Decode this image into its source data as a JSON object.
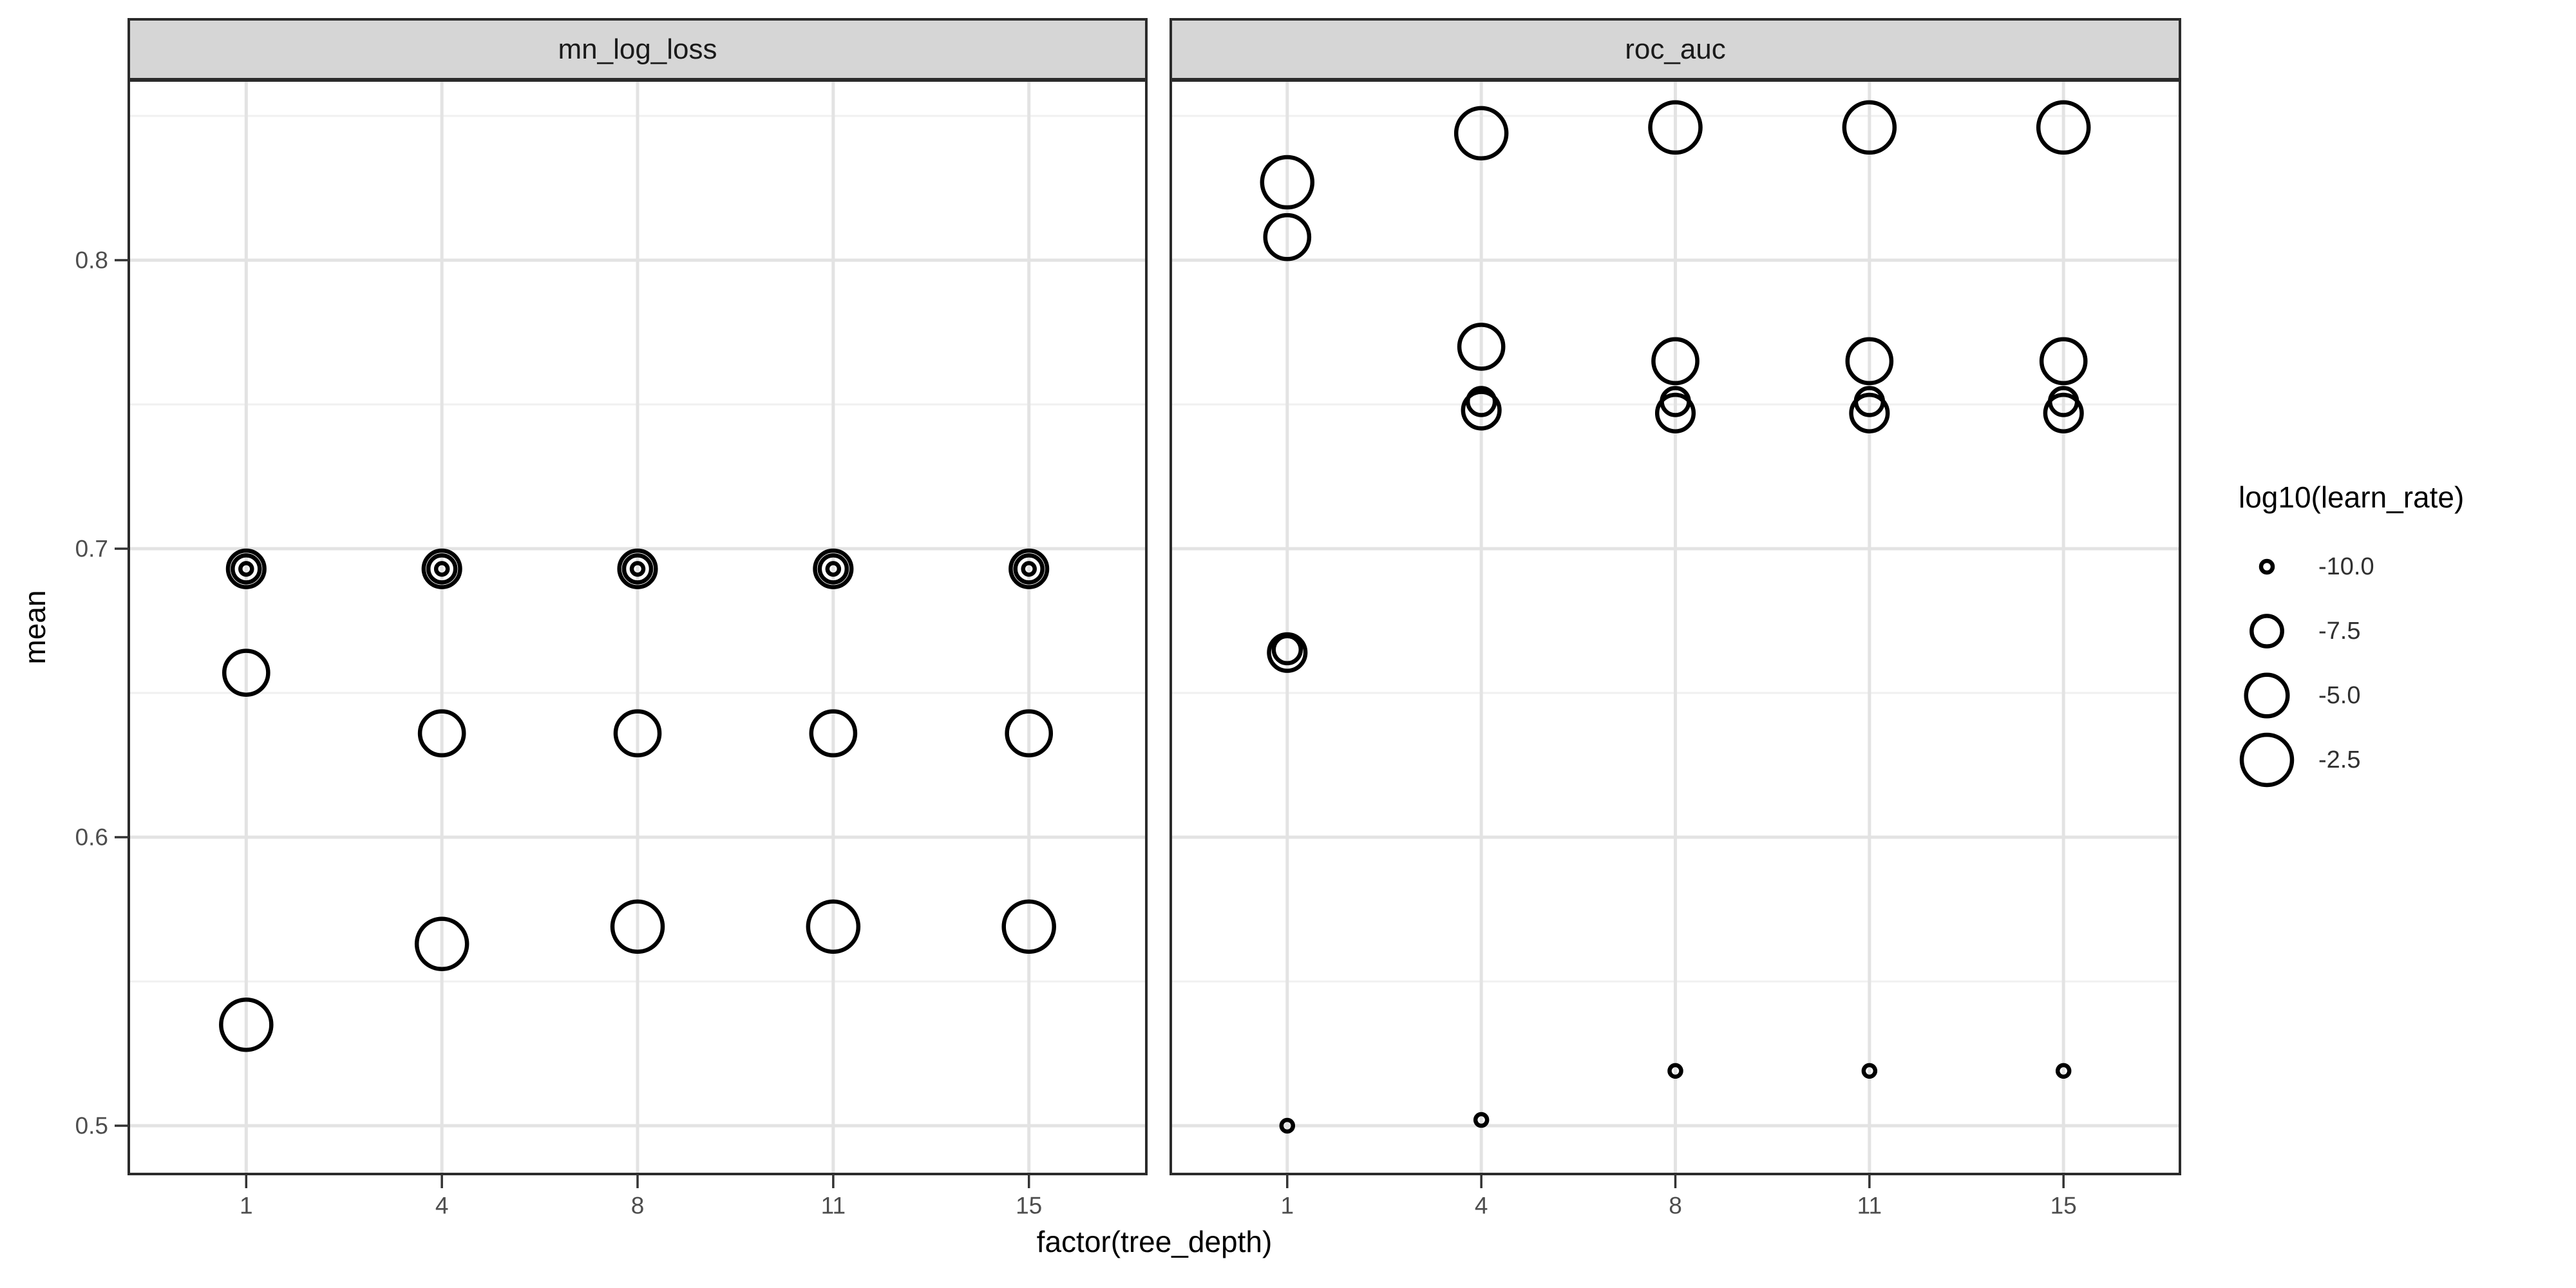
{
  "colors": {
    "background": "#ffffff",
    "strip_fill": "#d6d6d6",
    "strip_border": "#2b2b2b",
    "panel_border": "#2b2b2b",
    "grid_major": "#e3e3e3",
    "grid_minor": "#f0f0f0",
    "point_stroke": "#000000",
    "axis_tick_text": "#4d4d4d",
    "title_text": "#000000",
    "tick_mark": "#333333"
  },
  "chart_data": {
    "type": "scatter",
    "title": "",
    "xlabel": "factor(tree_depth)",
    "ylabel": "mean",
    "facet_labels": [
      "mn_log_loss",
      "roc_auc"
    ],
    "categories": [
      "1",
      "4",
      "8",
      "11",
      "15"
    ],
    "x_axis": {
      "tick_labels": [
        "1",
        "4",
        "8",
        "11",
        "15"
      ]
    },
    "y_axis": {
      "tick_labels": [
        "0.8",
        "0.7",
        "0.6",
        "0.5"
      ],
      "tick_values": [
        0.8,
        0.7,
        0.6,
        0.5
      ],
      "minor_values": [
        0.85,
        0.75,
        0.65,
        0.55
      ],
      "range_shown": [
        0.483,
        0.862
      ],
      "grid": true
    },
    "legend": {
      "title": "log10(learn_rate)",
      "position": "right",
      "entries": [
        {
          "label": "-10.0",
          "value": -10.0
        },
        {
          "label": "-7.5",
          "value": -7.5
        },
        {
          "label": "-5.0",
          "value": -5.0
        },
        {
          "label": "-2.5",
          "value": -2.5
        }
      ]
    },
    "size_scale": {
      "aesthetic": "size",
      "domain": [
        -10.0,
        -2.5
      ],
      "radius_px": [
        9,
        39
      ]
    },
    "facets": [
      {
        "label": "mn_log_loss",
        "points": [
          {
            "tree_depth": "1",
            "log10_learn_rate": -10.0,
            "mean": 0.693
          },
          {
            "tree_depth": "1",
            "log10_learn_rate": -8.125,
            "mean": 0.693
          },
          {
            "tree_depth": "1",
            "log10_learn_rate": -6.25,
            "mean": 0.693
          },
          {
            "tree_depth": "1",
            "log10_learn_rate": -4.375,
            "mean": 0.657
          },
          {
            "tree_depth": "1",
            "log10_learn_rate": -2.5,
            "mean": 0.535
          },
          {
            "tree_depth": "4",
            "log10_learn_rate": -10.0,
            "mean": 0.693
          },
          {
            "tree_depth": "4",
            "log10_learn_rate": -8.125,
            "mean": 0.693
          },
          {
            "tree_depth": "4",
            "log10_learn_rate": -6.25,
            "mean": 0.693
          },
          {
            "tree_depth": "4",
            "log10_learn_rate": -4.375,
            "mean": 0.636
          },
          {
            "tree_depth": "4",
            "log10_learn_rate": -2.5,
            "mean": 0.563
          },
          {
            "tree_depth": "8",
            "log10_learn_rate": -10.0,
            "mean": 0.693
          },
          {
            "tree_depth": "8",
            "log10_learn_rate": -8.125,
            "mean": 0.693
          },
          {
            "tree_depth": "8",
            "log10_learn_rate": -6.25,
            "mean": 0.693
          },
          {
            "tree_depth": "8",
            "log10_learn_rate": -4.375,
            "mean": 0.636
          },
          {
            "tree_depth": "8",
            "log10_learn_rate": -2.5,
            "mean": 0.569
          },
          {
            "tree_depth": "11",
            "log10_learn_rate": -10.0,
            "mean": 0.693
          },
          {
            "tree_depth": "11",
            "log10_learn_rate": -8.125,
            "mean": 0.693
          },
          {
            "tree_depth": "11",
            "log10_learn_rate": -6.25,
            "mean": 0.693
          },
          {
            "tree_depth": "11",
            "log10_learn_rate": -4.375,
            "mean": 0.636
          },
          {
            "tree_depth": "11",
            "log10_learn_rate": -2.5,
            "mean": 0.569
          },
          {
            "tree_depth": "15",
            "log10_learn_rate": -10.0,
            "mean": 0.693
          },
          {
            "tree_depth": "15",
            "log10_learn_rate": -8.125,
            "mean": 0.693
          },
          {
            "tree_depth": "15",
            "log10_learn_rate": -6.25,
            "mean": 0.693
          },
          {
            "tree_depth": "15",
            "log10_learn_rate": -4.375,
            "mean": 0.636
          },
          {
            "tree_depth": "15",
            "log10_learn_rate": -2.5,
            "mean": 0.569
          }
        ]
      },
      {
        "label": "roc_auc",
        "points": [
          {
            "tree_depth": "1",
            "log10_learn_rate": -10.0,
            "mean": 0.5
          },
          {
            "tree_depth": "1",
            "log10_learn_rate": -8.125,
            "mean": 0.665
          },
          {
            "tree_depth": "1",
            "log10_learn_rate": -6.25,
            "mean": 0.664
          },
          {
            "tree_depth": "1",
            "log10_learn_rate": -4.375,
            "mean": 0.808
          },
          {
            "tree_depth": "1",
            "log10_learn_rate": -2.5,
            "mean": 0.827
          },
          {
            "tree_depth": "4",
            "log10_learn_rate": -10.0,
            "mean": 0.502
          },
          {
            "tree_depth": "4",
            "log10_learn_rate": -8.125,
            "mean": 0.751
          },
          {
            "tree_depth": "4",
            "log10_learn_rate": -6.25,
            "mean": 0.748
          },
          {
            "tree_depth": "4",
            "log10_learn_rate": -4.375,
            "mean": 0.77
          },
          {
            "tree_depth": "4",
            "log10_learn_rate": -2.5,
            "mean": 0.844
          },
          {
            "tree_depth": "8",
            "log10_learn_rate": -10.0,
            "mean": 0.519
          },
          {
            "tree_depth": "8",
            "log10_learn_rate": -8.125,
            "mean": 0.751
          },
          {
            "tree_depth": "8",
            "log10_learn_rate": -6.25,
            "mean": 0.747
          },
          {
            "tree_depth": "8",
            "log10_learn_rate": -4.375,
            "mean": 0.765
          },
          {
            "tree_depth": "8",
            "log10_learn_rate": -2.5,
            "mean": 0.846
          },
          {
            "tree_depth": "11",
            "log10_learn_rate": -10.0,
            "mean": 0.519
          },
          {
            "tree_depth": "11",
            "log10_learn_rate": -8.125,
            "mean": 0.751
          },
          {
            "tree_depth": "11",
            "log10_learn_rate": -6.25,
            "mean": 0.747
          },
          {
            "tree_depth": "11",
            "log10_learn_rate": -4.375,
            "mean": 0.765
          },
          {
            "tree_depth": "11",
            "log10_learn_rate": -2.5,
            "mean": 0.846
          },
          {
            "tree_depth": "15",
            "log10_learn_rate": -10.0,
            "mean": 0.519
          },
          {
            "tree_depth": "15",
            "log10_learn_rate": -8.125,
            "mean": 0.751
          },
          {
            "tree_depth": "15",
            "log10_learn_rate": -6.25,
            "mean": 0.747
          },
          {
            "tree_depth": "15",
            "log10_learn_rate": -4.375,
            "mean": 0.765
          },
          {
            "tree_depth": "15",
            "log10_learn_rate": -2.5,
            "mean": 0.846
          }
        ]
      }
    ]
  }
}
